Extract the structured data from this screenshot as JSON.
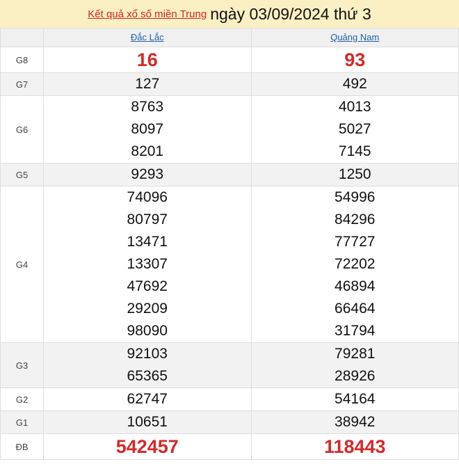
{
  "header": {
    "link": "Kết quả xổ số miền Trung",
    "date": "ngày 03/09/2024 thứ 3"
  },
  "provinces": [
    "Đắc Lắc",
    "Quảng Nam"
  ],
  "prizes": [
    {
      "label": "G8",
      "a": [
        "16"
      ],
      "b": [
        "93"
      ],
      "red": true
    },
    {
      "label": "G7",
      "a": [
        "127"
      ],
      "b": [
        "492"
      ]
    },
    {
      "label": "G6",
      "a": [
        "8763",
        "8097",
        "8201"
      ],
      "b": [
        "4013",
        "5027",
        "7145"
      ]
    },
    {
      "label": "G5",
      "a": [
        "9293"
      ],
      "b": [
        "1250"
      ]
    },
    {
      "label": "G4",
      "a": [
        "74096",
        "80797",
        "13471",
        "13307",
        "47692",
        "29209",
        "98090"
      ],
      "b": [
        "54996",
        "84296",
        "77727",
        "72202",
        "46894",
        "66464",
        "31794"
      ]
    },
    {
      "label": "G3",
      "a": [
        "92103",
        "65365"
      ],
      "b": [
        "79281",
        "28926"
      ]
    },
    {
      "label": "G2",
      "a": [
        "62747"
      ],
      "b": [
        "54164"
      ]
    },
    {
      "label": "G1",
      "a": [
        "10651"
      ],
      "b": [
        "38942"
      ]
    },
    {
      "label": "ĐB",
      "a": [
        "542457"
      ],
      "b": [
        "118443"
      ],
      "red": true
    }
  ]
}
